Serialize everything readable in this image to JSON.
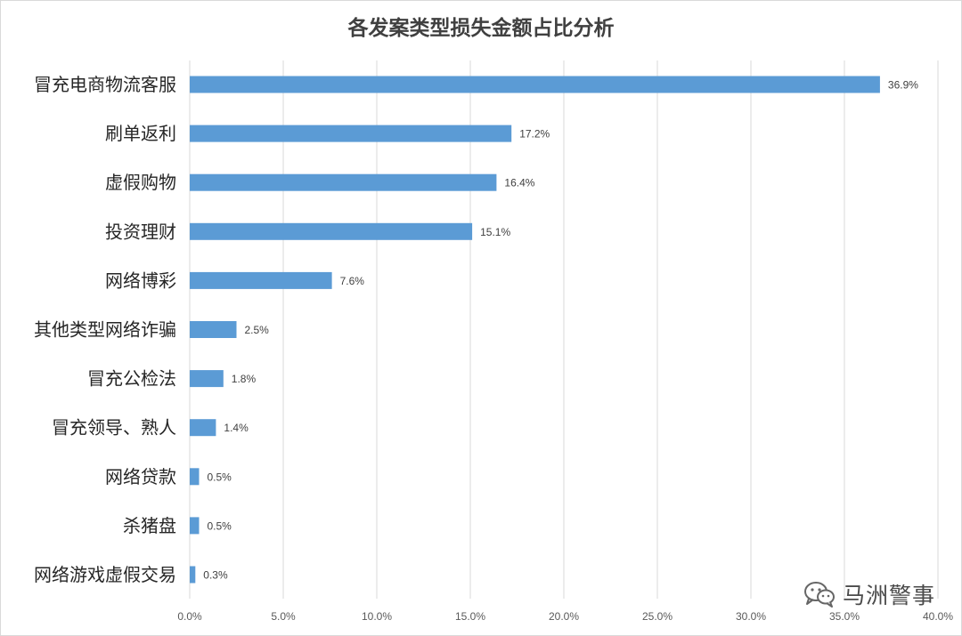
{
  "chart_data": {
    "type": "bar",
    "orientation": "horizontal",
    "title": "各发案类型损失金额占比分析",
    "categories": [
      "冒充电商物流客服",
      "刷单返利",
      "虚假购物",
      "投资理财",
      "网络博彩",
      "其他类型网络诈骗",
      "冒充公检法",
      "冒充领导、熟人",
      "网络贷款",
      "杀猪盘",
      "网络游戏虚假交易"
    ],
    "values": [
      36.9,
      17.2,
      16.4,
      15.1,
      7.6,
      2.5,
      1.8,
      1.4,
      0.5,
      0.5,
      0.3
    ],
    "value_labels": [
      "36.9%",
      "17.2%",
      "16.4%",
      "15.1%",
      "7.6%",
      "2.5%",
      "1.8%",
      "1.4%",
      "0.5%",
      "0.5%",
      "0.3%"
    ],
    "xlim": [
      0,
      40
    ],
    "xticks": [
      "0.0%",
      "5.0%",
      "10.0%",
      "15.0%",
      "20.0%",
      "25.0%",
      "30.0%",
      "35.0%",
      "40.0%"
    ],
    "grid": true,
    "legend": "none",
    "bar_color": "#5b9bd5",
    "grid_color": "#d9d9d9"
  },
  "watermark": {
    "text": "马洲警事",
    "icon": "wechat-icon"
  }
}
